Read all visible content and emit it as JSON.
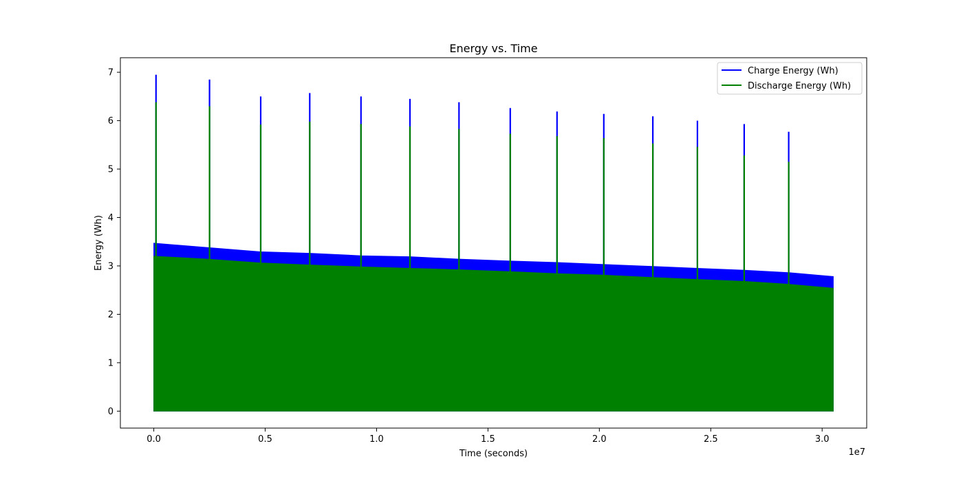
{
  "chart_data": {
    "type": "area",
    "title": "Energy vs. Time",
    "xlabel": "Time (seconds)",
    "ylabel": "Energy (Wh)",
    "x_offset_label": "1e7",
    "x_scale": 10000000,
    "xlim": [
      -1500000,
      32000000
    ],
    "ylim": [
      -0.35,
      7.3
    ],
    "xticks": [
      0.0,
      0.5,
      1.0,
      1.5,
      2.0,
      2.5,
      3.0
    ],
    "xtick_labels": [
      "0.0",
      "0.5",
      "1.0",
      "1.5",
      "2.0",
      "2.5",
      "3.0"
    ],
    "yticks": [
      0,
      1,
      2,
      3,
      4,
      5,
      6,
      7
    ],
    "ytick_labels": [
      "0",
      "1",
      "2",
      "3",
      "4",
      "5",
      "6",
      "7"
    ],
    "grid": false,
    "legend": "top-right",
    "series": [
      {
        "name": "Charge Energy (Wh)",
        "color": "#0000ff",
        "envelope_x": [
          0,
          2400000,
          4800000,
          7000000,
          9300000,
          11500000,
          13700000,
          16000000,
          18100000,
          20200000,
          22400000,
          24400000,
          26500000,
          28500000,
          30500000
        ],
        "envelope_y": [
          3.47,
          3.38,
          3.29,
          3.26,
          3.21,
          3.19,
          3.14,
          3.1,
          3.07,
          3.03,
          2.99,
          2.95,
          2.91,
          2.86,
          2.78
        ],
        "peaks_x": [
          100000,
          2500000,
          4800000,
          7000000,
          9300000,
          11500000,
          13700000,
          16000000,
          18100000,
          20200000,
          22400000,
          24400000,
          26500000,
          28500000
        ],
        "peaks_y": [
          6.95,
          6.85,
          6.5,
          6.57,
          6.5,
          6.45,
          6.38,
          6.26,
          6.19,
          6.14,
          6.09,
          6.0,
          5.93,
          5.77
        ]
      },
      {
        "name": "Discharge Energy (Wh)",
        "color": "#008000",
        "envelope_x": [
          0,
          2400000,
          4800000,
          7000000,
          9300000,
          11500000,
          13700000,
          16000000,
          18100000,
          20200000,
          22400000,
          24400000,
          26500000,
          28500000,
          30500000
        ],
        "envelope_y": [
          3.2,
          3.14,
          3.06,
          3.02,
          2.98,
          2.95,
          2.92,
          2.88,
          2.84,
          2.81,
          2.76,
          2.72,
          2.68,
          2.62,
          2.54
        ],
        "peaks_x": [
          100000,
          2500000,
          4800000,
          7000000,
          9300000,
          11500000,
          13700000,
          16000000,
          18100000,
          20200000,
          22400000,
          24400000,
          26500000,
          28500000
        ],
        "peaks_y": [
          6.38,
          6.3,
          5.92,
          5.98,
          5.93,
          5.88,
          5.83,
          5.73,
          5.68,
          5.64,
          5.53,
          5.46,
          5.28,
          5.15
        ]
      }
    ]
  }
}
